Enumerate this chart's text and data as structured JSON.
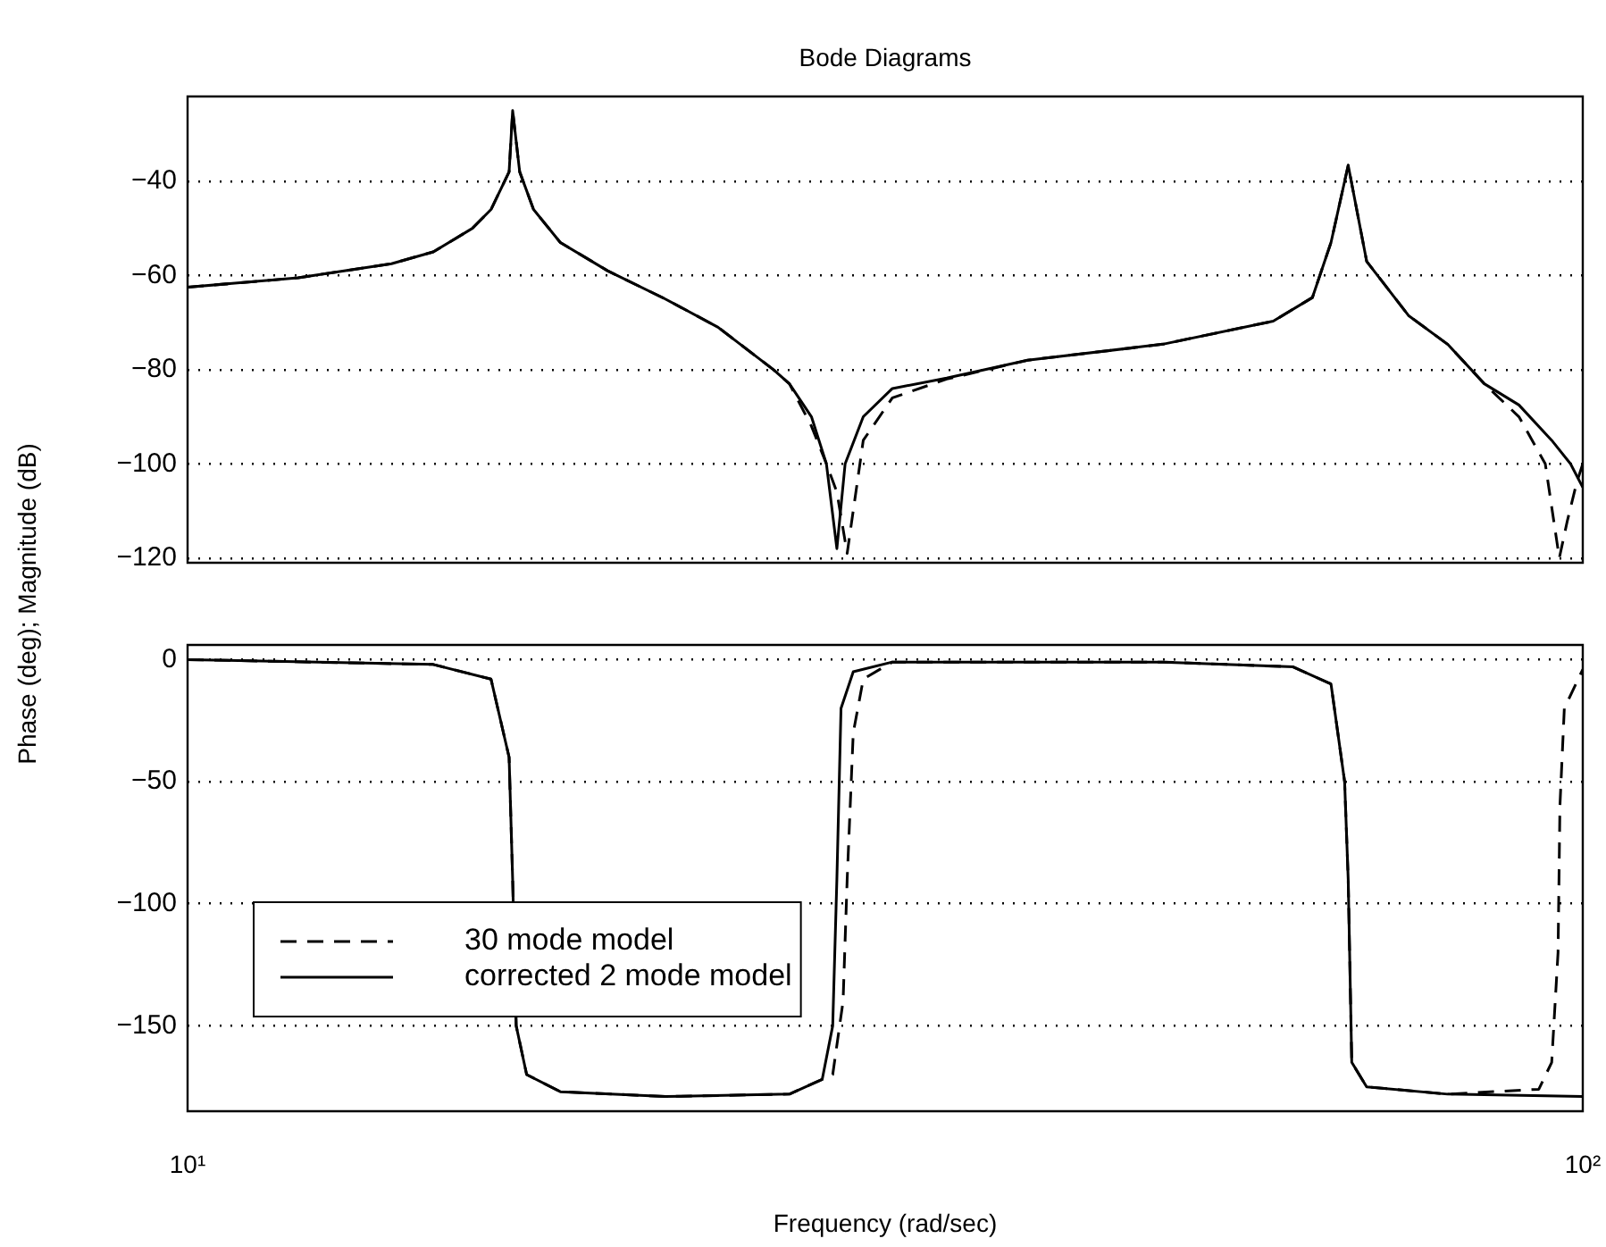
{
  "chart_data": [
    {
      "type": "line",
      "title": "Bode Diagrams",
      "ylabel": "Phase (deg); Magnitude (dB)",
      "xlim": [
        10,
        100
      ],
      "log": "x",
      "ylim": [
        -121,
        -22
      ],
      "yticks": [
        -40,
        -60,
        -80,
        -100,
        -120
      ],
      "grid": "y",
      "tick_labels": "y",
      "series": [
        {
          "color": "#000000",
          "line_style": "dashed",
          "x": [
            10,
            12,
            14,
            15,
            16,
            16.5,
            17,
            17.1,
            17.3,
            17.7,
            18.5,
            20,
            22,
            24,
            26.3,
            27,
            28,
            28.7,
            29.2,
            29.7,
            30.5,
            32,
            35,
            40,
            50,
            60,
            64,
            66,
            67.9,
            70,
            75,
            80,
            85,
            90,
            94,
            96.2,
            97.5,
            99,
            100
          ],
          "values": [
            -62.5,
            -60.5,
            -57.5,
            -55,
            -50,
            -46,
            -38,
            -25,
            -38,
            -46,
            -53,
            -59,
            -65,
            -71,
            -80,
            -83,
            -92,
            -100,
            -106,
            -119,
            -95,
            -86,
            -82,
            -78,
            -74.6,
            -69.7,
            -64.7,
            -53,
            -36.6,
            -57,
            -68.5,
            -74.6,
            -83,
            -90,
            -100,
            -120,
            -112,
            -104,
            -100
          ]
        },
        {
          "color": "#000000",
          "line_style": "solid",
          "x": [
            10,
            12,
            14,
            15,
            16,
            16.5,
            17,
            17.1,
            17.3,
            17.7,
            18.5,
            20,
            22,
            24,
            26.3,
            27,
            28,
            28.7,
            29.2,
            29.6,
            30.5,
            32,
            35,
            40,
            50,
            60,
            64,
            66,
            67.9,
            70,
            75,
            80,
            85,
            90,
            95,
            98,
            100
          ],
          "values": [
            -62.5,
            -60.5,
            -57.5,
            -55,
            -50,
            -46,
            -38,
            -25,
            -38,
            -46,
            -53,
            -59,
            -65,
            -71,
            -80,
            -83,
            -90,
            -100,
            -118,
            -100,
            -90,
            -84,
            -81.8,
            -78,
            -74.6,
            -69.7,
            -64.7,
            -53,
            -36.6,
            -57,
            -68.5,
            -74.6,
            -83,
            -87.5,
            -95,
            -100,
            -105
          ]
        }
      ]
    },
    {
      "type": "line",
      "xlabel": "Frequency (rad/sec)",
      "xlim": [
        10,
        100
      ],
      "xticks": [
        {
          "value": 10,
          "label": "10¹"
        },
        {
          "value": 100,
          "label": "10²"
        }
      ],
      "log": "x",
      "ylim": [
        -185,
        6
      ],
      "yticks": [
        0,
        -50,
        -100,
        -150
      ],
      "grid": "y",
      "legend": "bottom left",
      "series": [
        {
          "name": "30 mode model",
          "color": "#000000",
          "line_style": "dashed",
          "x": [
            10,
            15,
            16.5,
            17,
            17.1,
            17.2,
            17.5,
            18.5,
            22,
            27,
            29,
            29.5,
            29.7,
            30,
            30.5,
            32,
            50,
            62,
            66,
            67.5,
            67.9,
            68.3,
            70,
            80,
            93,
            95,
            96,
            96.3,
            97,
            100
          ],
          "values": [
            0,
            -2,
            -8,
            -40,
            -90,
            -150,
            -170,
            -177,
            -179,
            -178,
            -170,
            -140,
            -90,
            -30,
            -8,
            -1,
            -1,
            -3,
            -10,
            -50,
            -90,
            -165,
            -175,
            -178,
            -176,
            -165,
            -120,
            -60,
            -20,
            -4
          ]
        },
        {
          "name": "corrected 2 mode model",
          "color": "#000000",
          "line_style": "solid",
          "x": [
            10,
            15,
            16.5,
            17,
            17.1,
            17.2,
            17.5,
            18.5,
            22,
            27,
            28.5,
            29,
            29.2,
            29.4,
            30,
            32,
            50,
            62,
            66,
            67.5,
            67.9,
            68.3,
            70,
            80,
            100
          ],
          "values": [
            0,
            -2,
            -8,
            -40,
            -90,
            -150,
            -170,
            -177,
            -179,
            -178,
            -172,
            -150,
            -90,
            -20,
            -5,
            -1,
            -1,
            -3,
            -10,
            -50,
            -90,
            -165,
            -175,
            -178,
            -179
          ]
        }
      ]
    }
  ]
}
